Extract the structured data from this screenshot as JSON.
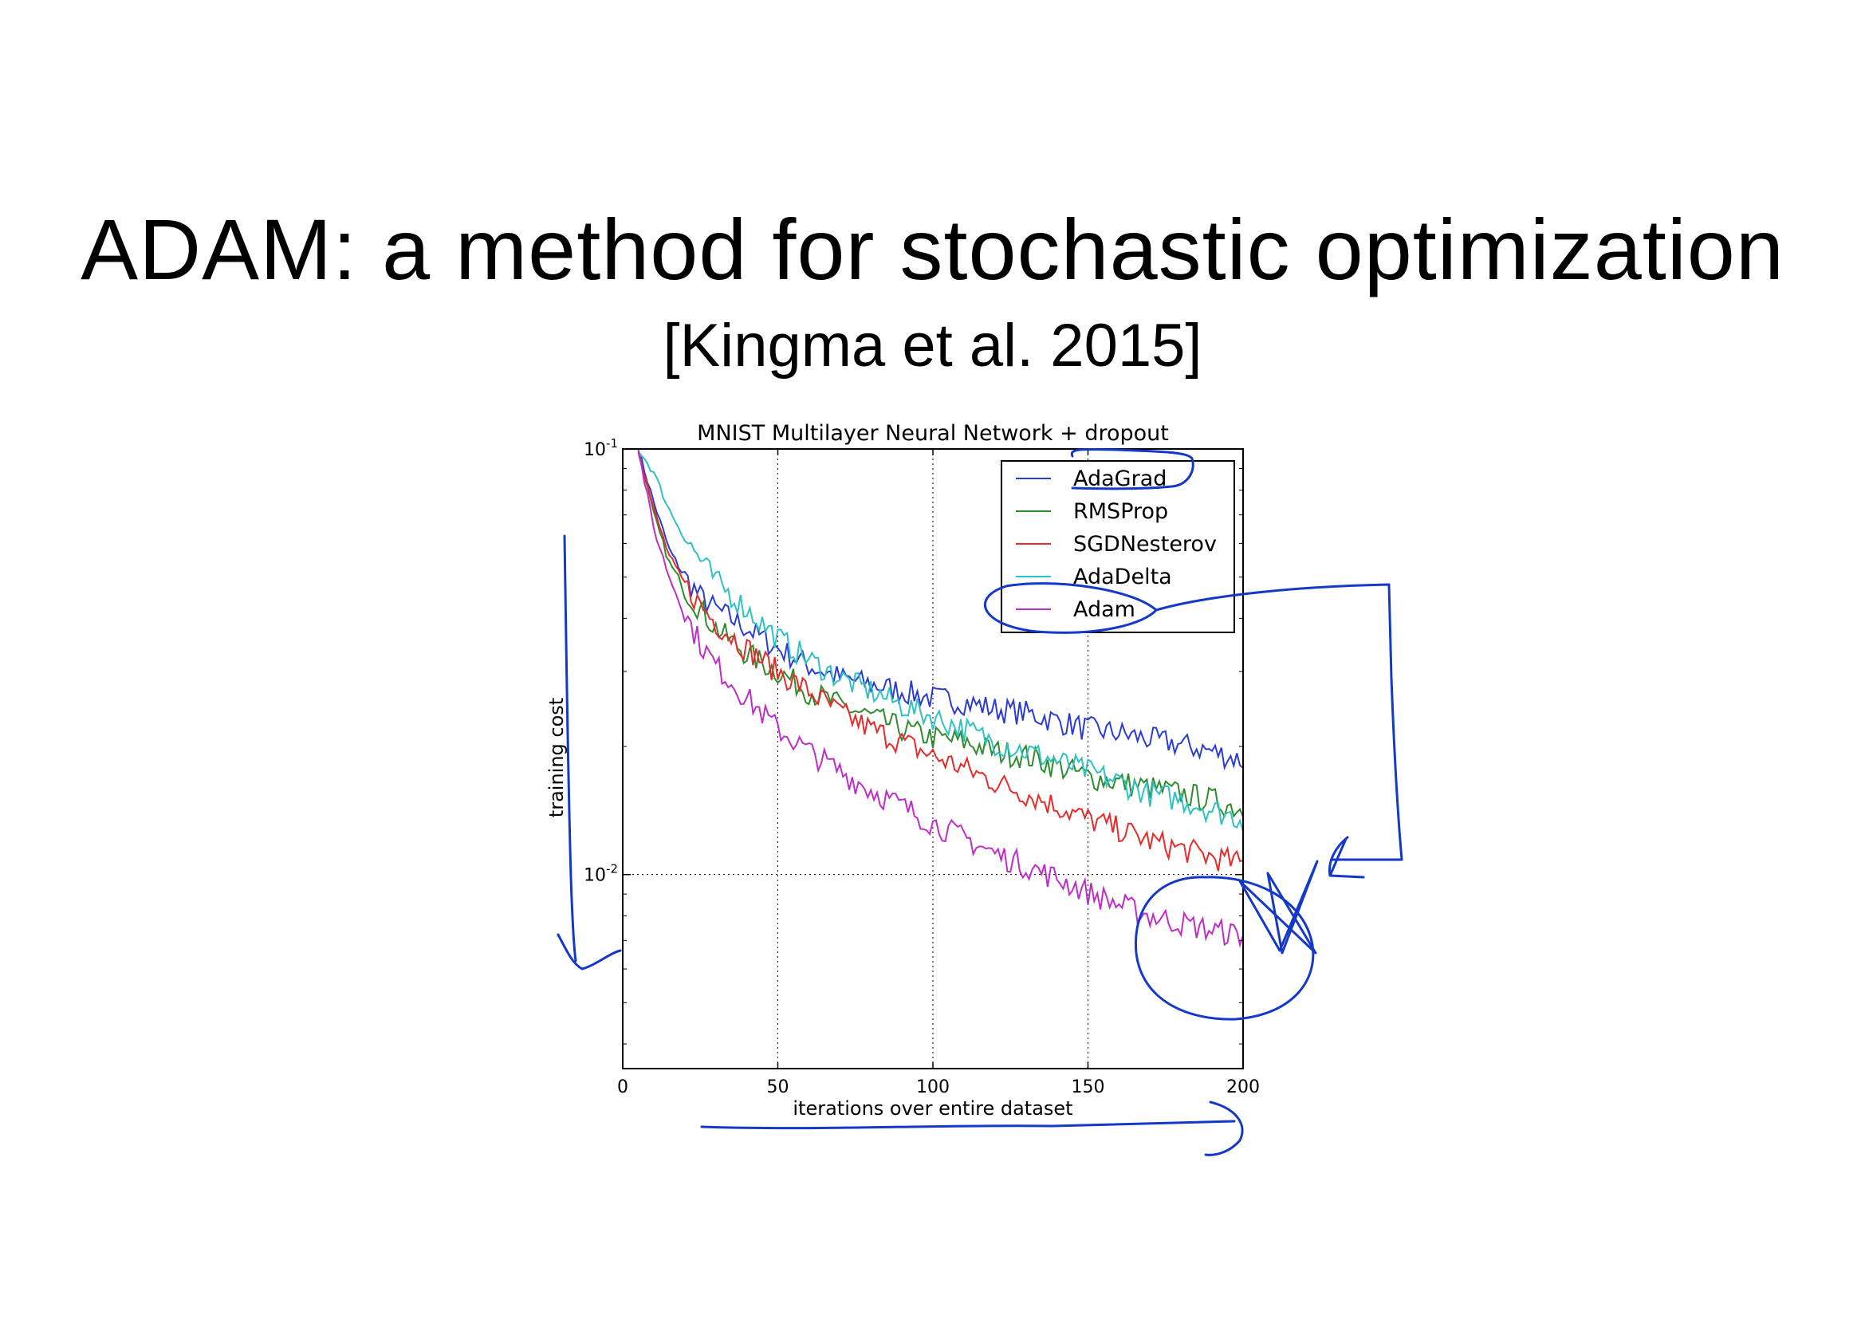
{
  "slide": {
    "title": "ADAM: a method for stochastic optimization",
    "subtitle": "[Kingma et al. 2015]"
  },
  "chart_data": {
    "type": "line",
    "title": "MNIST Multilayer Neural Network + dropout",
    "xlabel": "iterations over entire dataset",
    "ylabel": "training cost",
    "xlim": [
      0,
      200
    ],
    "ylim": [
      0.0035,
      0.1
    ],
    "yscale": "log",
    "x_ticks": [
      {
        "v": 0,
        "label": "0"
      },
      {
        "v": 50,
        "label": "50"
      },
      {
        "v": 100,
        "label": "100"
      },
      {
        "v": 150,
        "label": "150"
      },
      {
        "v": 200,
        "label": "200"
      }
    ],
    "y_ticks": [
      {
        "v": 0.1,
        "base": "10",
        "exp": "-1"
      },
      {
        "v": 0.01,
        "base": "10",
        "exp": "-2"
      }
    ],
    "grid": true,
    "legend_position": "top-right",
    "x": [
      5,
      10,
      15,
      20,
      25,
      30,
      40,
      50,
      60,
      70,
      80,
      90,
      100,
      110,
      120,
      130,
      140,
      150,
      160,
      170,
      180,
      190,
      200
    ],
    "series": [
      {
        "name": "AdaGrad",
        "color": "#2a3bd6",
        "values": [
          0.1,
          0.075,
          0.058,
          0.05,
          0.045,
          0.042,
          0.038,
          0.034,
          0.031,
          0.029,
          0.028,
          0.027,
          0.026,
          0.0255,
          0.0245,
          0.024,
          0.023,
          0.022,
          0.0215,
          0.0208,
          0.0202,
          0.0195,
          0.0185
        ]
      },
      {
        "name": "RMSProp",
        "color": "#2e8b2e",
        "values": [
          0.1,
          0.07,
          0.054,
          0.047,
          0.042,
          0.038,
          0.033,
          0.03,
          0.027,
          0.025,
          0.0235,
          0.022,
          0.021,
          0.0205,
          0.0195,
          0.019,
          0.018,
          0.017,
          0.0165,
          0.016,
          0.0155,
          0.015,
          0.0142
        ]
      },
      {
        "name": "SGDNesterov",
        "color": "#e82a2a",
        "values": [
          0.1,
          0.072,
          0.056,
          0.048,
          0.043,
          0.039,
          0.034,
          0.03,
          0.027,
          0.024,
          0.022,
          0.0205,
          0.019,
          0.0178,
          0.0165,
          0.0155,
          0.0145,
          0.0135,
          0.0128,
          0.012,
          0.0115,
          0.011,
          0.0106
        ]
      },
      {
        "name": "AdaDelta",
        "color": "#2fc2c2",
        "values": [
          0.1,
          0.088,
          0.072,
          0.062,
          0.055,
          0.049,
          0.042,
          0.036,
          0.032,
          0.029,
          0.027,
          0.025,
          0.0235,
          0.022,
          0.0205,
          0.0195,
          0.0185,
          0.0175,
          0.0165,
          0.0155,
          0.015,
          0.0142,
          0.0135
        ]
      },
      {
        "name": "Adam",
        "color": "#c02cc8",
        "values": [
          0.1,
          0.065,
          0.05,
          0.041,
          0.035,
          0.031,
          0.026,
          0.022,
          0.0195,
          0.0175,
          0.0158,
          0.0145,
          0.0132,
          0.0122,
          0.0112,
          0.0105,
          0.0098,
          0.0091,
          0.0085,
          0.008,
          0.0077,
          0.0074,
          0.0072
        ]
      }
    ]
  },
  "annotations": {
    "ink_color": "#1438c8"
  }
}
